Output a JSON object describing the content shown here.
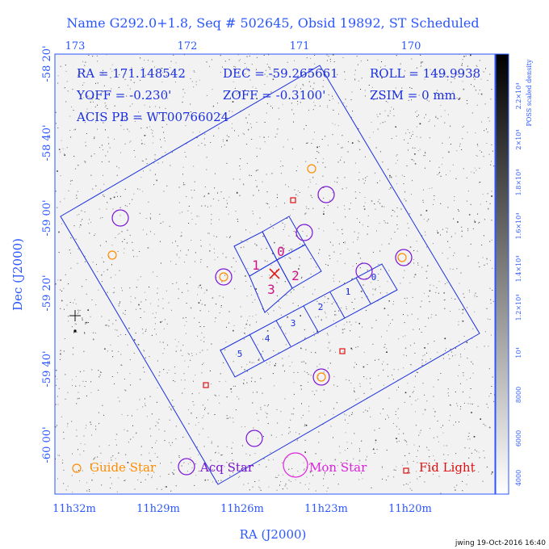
{
  "title": "Name G292.0+1.8, Seq # 502645, Obsid 19892, ST Scheduled",
  "info": {
    "ra": "RA = 171.148542",
    "dec": "DEC = -59.265661",
    "roll": "ROLL = 149.9938",
    "yoff": "YOFF = -0.230'",
    "zoff": "ZOFF = -0.3100'",
    "zsim": "ZSIM = 0 mm",
    "acis_pb": "ACIS PB = WT00766024"
  },
  "axes": {
    "xlabel": "RA (J2000)",
    "ylabel": "Dec (J2000)",
    "bottom_ticks": [
      "11h32m",
      "11h29m",
      "11h26m",
      "11h23m",
      "11h20m"
    ],
    "top_ticks": [
      "173",
      "172",
      "171",
      "170"
    ],
    "left_ticks": [
      "-58 20'",
      "-58 40'",
      "-59 00'",
      "-59 20'",
      "-59 40'",
      "-60 00'"
    ]
  },
  "colorbar": {
    "label": "POSS scaled density",
    "ticks": [
      "4000",
      "6000",
      "8000",
      "10⁴",
      "1.2×10⁴",
      "1.4×10⁴",
      "1.6×10⁴",
      "1.8×10⁴",
      "2×10⁴",
      "2.2×10⁴"
    ]
  },
  "chips": {
    "acis_i": [
      "0",
      "1",
      "2",
      "3"
    ],
    "acis_s": [
      "0",
      "1",
      "2",
      "3",
      "4",
      "5"
    ]
  },
  "legend": {
    "guide": "Guide Star",
    "acq": "Acq Star",
    "mon": "Mon Star",
    "fid": "Fid Light"
  },
  "footer": "jwing 19-Oct-2016 16:40",
  "colors": {
    "background": "#ffffff",
    "axis_blue": "#2a56ff",
    "field_blue": "#1a2fe0",
    "guide_orange": "#ff8c00",
    "acq_purple": "#7a14d4",
    "mon_magenta": "#e020e0",
    "fid_red": "#dd1111",
    "chip_magenta": "#d0118a"
  }
}
